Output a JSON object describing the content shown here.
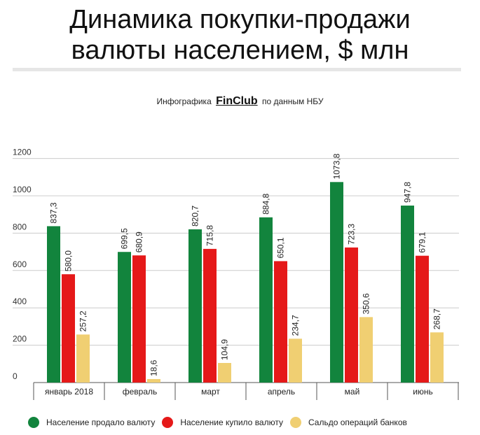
{
  "title_line1": "Динамика покупки-продажи",
  "title_line2": "валюты населением, $ млн",
  "source_prefix": "Инфографика",
  "source_brand": "FinClub",
  "source_suffix": "по данным НБУ",
  "colors": {
    "sold": "#12843d",
    "bought": "#e51919",
    "balance": "#f0cf72"
  },
  "chart_data": {
    "type": "bar",
    "title": "Динамика покупки-продажи валюты населением, $ млн",
    "categories": [
      "январь 2018",
      "февраль",
      "март",
      "апрель",
      "май",
      "июнь"
    ],
    "ylim": [
      0,
      1200
    ],
    "yticks": [
      0,
      200,
      400,
      600,
      800,
      1000,
      1200
    ],
    "grid": true,
    "legend_position": "bottom",
    "series": [
      {
        "name": "Население продало валюту",
        "values": [
          837.3,
          699.5,
          820.7,
          884.8,
          1073.8,
          947.8
        ],
        "labels": [
          "837,3",
          "699,5",
          "820,7",
          "884,8",
          "1073,8",
          "947,8"
        ]
      },
      {
        "name": "Население купило валюту",
        "values": [
          580.0,
          680.9,
          715.8,
          650.1,
          723.3,
          679.1
        ],
        "labels": [
          "580,0",
          "680,9",
          "715,8",
          "650,1",
          "723,3",
          "679,1"
        ]
      },
      {
        "name": "Сальдо операций банков",
        "values": [
          257.2,
          18.6,
          104.9,
          234.7,
          350.6,
          268.7
        ],
        "labels": [
          "257,2",
          "18,6",
          "104,9",
          "234,7",
          "350,6",
          "268,7"
        ]
      }
    ]
  }
}
